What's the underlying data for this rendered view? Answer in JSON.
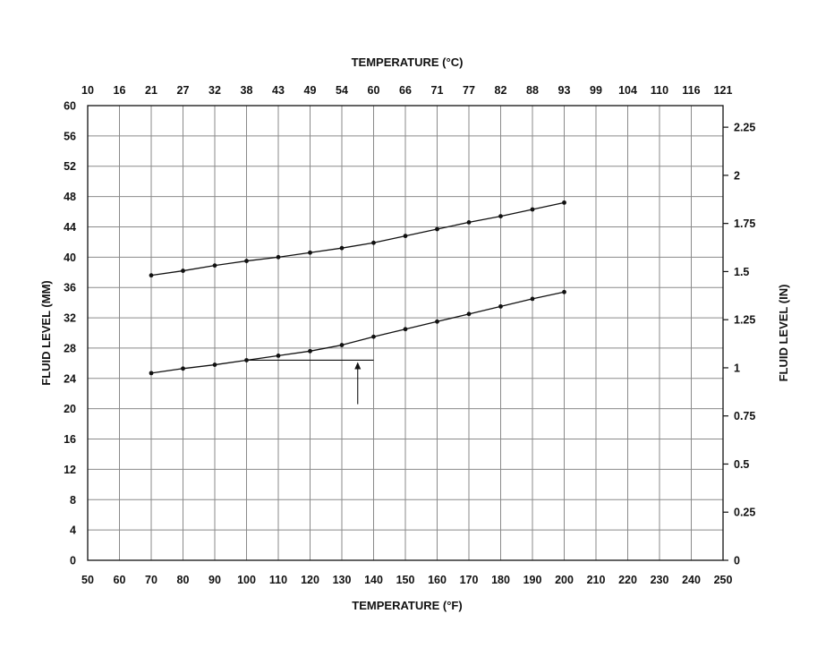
{
  "chart_data": {
    "type": "line",
    "title": "",
    "top_axis": {
      "label": "TEMPERATURE (°C)",
      "ticks": [
        "10",
        "16",
        "21",
        "27",
        "32",
        "38",
        "43",
        "49",
        "54",
        "60",
        "66",
        "71",
        "77",
        "82",
        "88",
        "93",
        "99",
        "104",
        "110",
        "116",
        "121"
      ]
    },
    "x_axis": {
      "label": "TEMPERATURE (°F)",
      "lim": [
        50,
        250
      ],
      "ticks": [
        50,
        60,
        70,
        80,
        90,
        100,
        110,
        120,
        130,
        140,
        150,
        160,
        170,
        180,
        190,
        200,
        210,
        220,
        230,
        240,
        250
      ]
    },
    "y_axis": {
      "label": "FLUID LEVEL (MM)",
      "lim": [
        0,
        60
      ],
      "ticks": [
        0,
        4,
        8,
        12,
        16,
        20,
        24,
        28,
        32,
        36,
        40,
        44,
        48,
        52,
        56,
        60
      ]
    },
    "right_axis": {
      "label": "FLUID LEVEL (IN)",
      "lim": [
        0,
        2.3622
      ],
      "ticks": [
        "0",
        "0.25",
        "0.5",
        "0.75",
        "1",
        "1.25",
        "1.5",
        "1.75",
        "2",
        "2.25"
      ]
    },
    "grid": true,
    "series": [
      {
        "x": [
          70,
          80,
          90,
          100,
          110,
          120,
          130,
          140,
          150,
          160,
          170,
          180,
          190,
          200
        ],
        "y": [
          37.6,
          38.2,
          38.9,
          39.5,
          40.0,
          40.6,
          41.2,
          41.9,
          42.8,
          43.7,
          44.6,
          45.4,
          46.3,
          47.2
        ]
      },
      {
        "x": [
          70,
          80,
          90,
          100,
          110,
          120,
          130,
          140,
          150,
          160,
          170,
          180,
          190,
          200
        ],
        "y": [
          24.7,
          25.3,
          25.8,
          26.4,
          27.0,
          27.6,
          28.4,
          29.5,
          30.5,
          31.5,
          32.5,
          33.5,
          34.5,
          35.4
        ]
      }
    ],
    "annotations": [
      {
        "type": "horizontal-line",
        "y": 26.4,
        "x_from": 100,
        "x_to": 140
      },
      {
        "type": "arrow-up",
        "x": 135,
        "y_from": 20.6,
        "y_to": 26.4
      }
    ]
  }
}
